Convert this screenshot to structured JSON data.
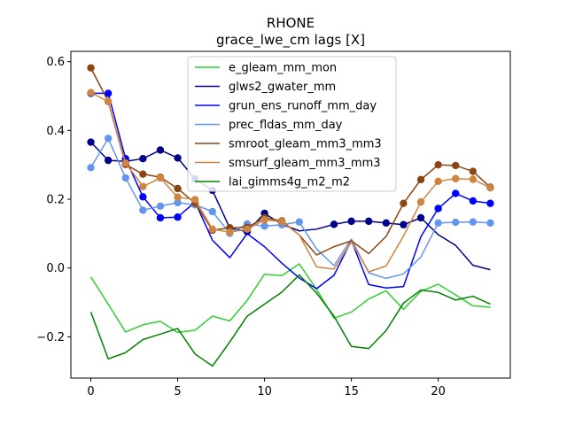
{
  "chart_data": {
    "type": "line",
    "title_lines": [
      "RHONE",
      "grace_lwe_cm lags [X]"
    ],
    "xlabel": "",
    "ylabel": "",
    "xlim": [
      -1.15,
      24.15
    ],
    "ylim": [
      -0.32,
      0.63
    ],
    "xticks": [
      0,
      5,
      10,
      15,
      20
    ],
    "yticks": [
      -0.2,
      0.0,
      0.2,
      0.4,
      0.6
    ],
    "ytick_labels": [
      "−0.2",
      "0.0",
      "0.2",
      "0.4",
      "0.6"
    ],
    "grid": false,
    "legend_position": "upper-center",
    "x": [
      0,
      1,
      2,
      3,
      4,
      5,
      6,
      7,
      8,
      9,
      10,
      11,
      12,
      13,
      14,
      15,
      16,
      17,
      18,
      19,
      20,
      21,
      22,
      23
    ],
    "series": [
      {
        "name": "e_gleam_mm_mon",
        "color": "#32cd32",
        "values": [
          -0.026,
          -0.105,
          -0.186,
          -0.165,
          -0.155,
          -0.187,
          -0.181,
          -0.14,
          -0.154,
          -0.094,
          -0.018,
          -0.022,
          0.012,
          -0.062,
          -0.146,
          -0.128,
          -0.09,
          -0.066,
          -0.12,
          -0.068,
          -0.047,
          -0.078,
          -0.11,
          -0.114
        ],
        "markers": []
      },
      {
        "name": "glws2_gwater_mm",
        "color": "#00008b",
        "values": [
          0.366,
          0.313,
          0.31,
          0.318,
          0.343,
          0.32,
          0.259,
          0.226,
          0.116,
          0.106,
          0.159,
          0.127,
          0.108,
          0.113,
          0.127,
          0.136,
          0.136,
          0.131,
          0.126,
          0.146,
          0.097,
          0.066,
          0.008,
          -0.005
        ],
        "markers": [
          0,
          1,
          2,
          3,
          4,
          5,
          6,
          7,
          8,
          9,
          10,
          11,
          14,
          15,
          16,
          17,
          18,
          19
        ]
      },
      {
        "name": "grun_ens_runoff_mm_day",
        "color": "#0000ff",
        "values": [
          0.508,
          0.508,
          0.318,
          0.207,
          0.146,
          0.148,
          0.192,
          0.081,
          0.03,
          0.1,
          0.062,
          0.014,
          -0.029,
          -0.06,
          -0.021,
          0.08,
          -0.048,
          -0.058,
          -0.054,
          0.091,
          0.173,
          0.217,
          0.195,
          0.188
        ],
        "markers": [
          0,
          1,
          2,
          3,
          4,
          5,
          20,
          21,
          22,
          23
        ]
      },
      {
        "name": "prec_fldas_mm_day",
        "color": "#6495ed",
        "values": [
          0.292,
          0.377,
          0.262,
          0.168,
          0.18,
          0.19,
          0.184,
          0.164,
          0.101,
          0.128,
          0.122,
          0.126,
          0.134,
          0.055,
          0.007,
          0.084,
          -0.014,
          -0.03,
          -0.017,
          0.032,
          0.131,
          0.133,
          0.134,
          0.131
        ],
        "markers": [
          0,
          1,
          2,
          3,
          4,
          5,
          6,
          7,
          8,
          9,
          10,
          11,
          12,
          20,
          21,
          22,
          23
        ]
      },
      {
        "name": "smroot_gleam_mm3_mm3",
        "color": "#8b4513",
        "values": [
          0.582,
          0.484,
          0.301,
          0.273,
          0.264,
          0.231,
          0.189,
          0.11,
          0.117,
          0.118,
          0.146,
          0.137,
          0.096,
          0.038,
          0.062,
          0.079,
          0.042,
          0.092,
          0.188,
          0.257,
          0.3,
          0.298,
          0.281,
          0.235
        ],
        "markers": [
          0,
          1,
          2,
          3,
          4,
          5,
          6,
          7,
          8,
          9,
          10,
          11,
          18,
          19,
          20,
          21,
          22,
          23
        ]
      },
      {
        "name": "smsurf_gleam_mm3_mm3",
        "color": "#cd853f",
        "values": [
          0.51,
          0.484,
          0.305,
          0.237,
          0.262,
          0.206,
          0.199,
          0.113,
          0.104,
          0.113,
          0.14,
          0.135,
          0.096,
          0.003,
          -0.003,
          0.076,
          -0.011,
          0.006,
          0.093,
          0.192,
          0.252,
          0.26,
          0.258,
          0.233
        ],
        "markers": [
          0,
          1,
          2,
          3,
          4,
          5,
          6,
          7,
          8,
          9,
          10,
          11,
          19,
          20,
          21,
          22,
          23
        ]
      },
      {
        "name": "lai_gimms4g_m2_m2",
        "color": "#008000",
        "values": [
          -0.128,
          -0.264,
          -0.246,
          -0.208,
          -0.192,
          -0.176,
          -0.25,
          -0.285,
          -0.215,
          -0.14,
          -0.105,
          -0.07,
          -0.02,
          -0.073,
          -0.14,
          -0.228,
          -0.234,
          -0.182,
          -0.102,
          -0.064,
          -0.071,
          -0.093,
          -0.082,
          -0.105
        ],
        "markers": []
      }
    ]
  }
}
